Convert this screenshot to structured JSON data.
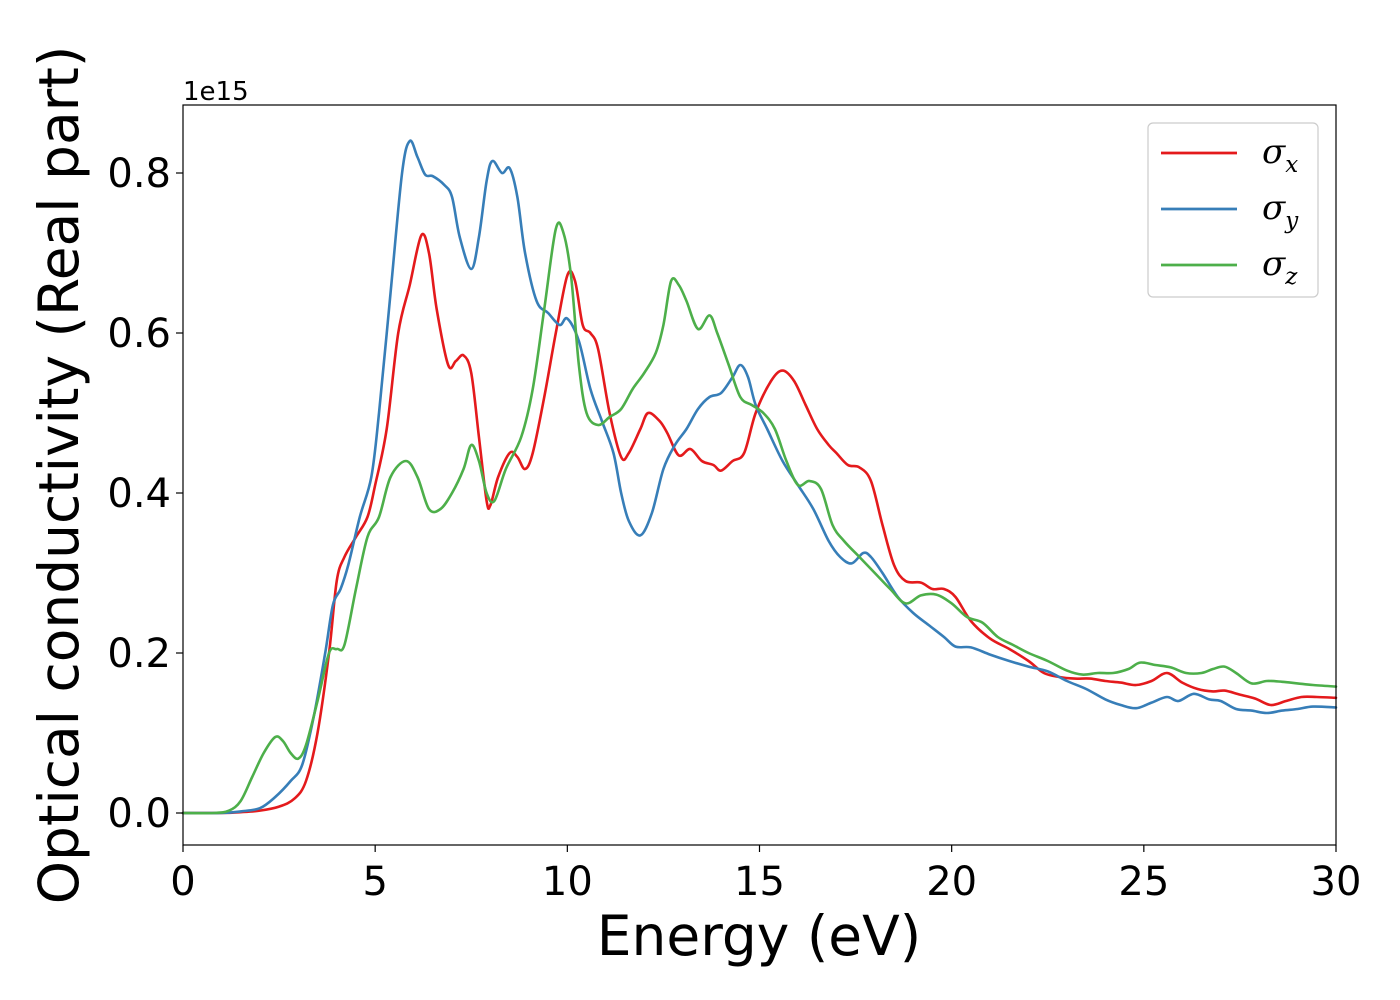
{
  "chart_data": {
    "type": "line",
    "xlabel": "Energy (eV)",
    "ylabel": "Optical conductivity (Real part)",
    "y_offset_label": "1e15",
    "xlim": [
      0,
      30
    ],
    "ylim": [
      -0.04,
      0.885
    ],
    "xticks": [
      0,
      5,
      10,
      15,
      20,
      25,
      30
    ],
    "yticks": [
      0.0,
      0.2,
      0.4,
      0.6,
      0.8
    ],
    "xtick_labels": [
      "0",
      "5",
      "10",
      "15",
      "20",
      "25",
      "30"
    ],
    "ytick_labels": [
      "0.0",
      "0.2",
      "0.4",
      "0.6",
      "0.8"
    ],
    "grid": false,
    "legend_position": "top-right",
    "series": [
      {
        "name": "σx",
        "label_main": "σ",
        "label_sub": "x",
        "color": "#e41a1c",
        "points": [
          [
            0,
            0.0
          ],
          [
            1.0,
            0.0
          ],
          [
            1.5,
            0.001
          ],
          [
            2.0,
            0.003
          ],
          [
            2.5,
            0.008
          ],
          [
            2.9,
            0.018
          ],
          [
            3.2,
            0.04
          ],
          [
            3.5,
            0.1
          ],
          [
            3.8,
            0.2
          ],
          [
            4.0,
            0.29
          ],
          [
            4.2,
            0.32
          ],
          [
            4.5,
            0.345
          ],
          [
            4.8,
            0.37
          ],
          [
            5.0,
            0.41
          ],
          [
            5.3,
            0.48
          ],
          [
            5.6,
            0.6
          ],
          [
            5.9,
            0.66
          ],
          [
            6.2,
            0.722
          ],
          [
            6.4,
            0.7
          ],
          [
            6.6,
            0.63
          ],
          [
            6.9,
            0.56
          ],
          [
            7.1,
            0.565
          ],
          [
            7.3,
            0.572
          ],
          [
            7.5,
            0.55
          ],
          [
            7.7,
            0.47
          ],
          [
            7.9,
            0.39
          ],
          [
            8.0,
            0.385
          ],
          [
            8.2,
            0.42
          ],
          [
            8.5,
            0.45
          ],
          [
            8.7,
            0.445
          ],
          [
            8.9,
            0.43
          ],
          [
            9.1,
            0.45
          ],
          [
            9.4,
            0.52
          ],
          [
            9.7,
            0.6
          ],
          [
            10.0,
            0.672
          ],
          [
            10.2,
            0.665
          ],
          [
            10.4,
            0.61
          ],
          [
            10.6,
            0.6
          ],
          [
            10.8,
            0.58
          ],
          [
            11.1,
            0.5
          ],
          [
            11.4,
            0.445
          ],
          [
            11.6,
            0.45
          ],
          [
            11.9,
            0.48
          ],
          [
            12.1,
            0.5
          ],
          [
            12.4,
            0.49
          ],
          [
            12.6,
            0.475
          ],
          [
            12.9,
            0.447
          ],
          [
            13.2,
            0.455
          ],
          [
            13.5,
            0.44
          ],
          [
            13.8,
            0.435
          ],
          [
            14.0,
            0.428
          ],
          [
            14.3,
            0.44
          ],
          [
            14.6,
            0.45
          ],
          [
            14.9,
            0.5
          ],
          [
            15.3,
            0.54
          ],
          [
            15.6,
            0.553
          ],
          [
            15.9,
            0.54
          ],
          [
            16.2,
            0.51
          ],
          [
            16.5,
            0.48
          ],
          [
            16.8,
            0.46
          ],
          [
            17.0,
            0.45
          ],
          [
            17.3,
            0.435
          ],
          [
            17.6,
            0.432
          ],
          [
            17.9,
            0.415
          ],
          [
            18.2,
            0.36
          ],
          [
            18.5,
            0.31
          ],
          [
            18.8,
            0.29
          ],
          [
            19.2,
            0.288
          ],
          [
            19.5,
            0.28
          ],
          [
            19.8,
            0.28
          ],
          [
            20.1,
            0.27
          ],
          [
            20.5,
            0.24
          ],
          [
            21.0,
            0.218
          ],
          [
            21.5,
            0.205
          ],
          [
            22.0,
            0.19
          ],
          [
            22.4,
            0.175
          ],
          [
            22.8,
            0.17
          ],
          [
            23.2,
            0.168
          ],
          [
            23.6,
            0.168
          ],
          [
            24.0,
            0.165
          ],
          [
            24.4,
            0.163
          ],
          [
            24.8,
            0.16
          ],
          [
            25.2,
            0.165
          ],
          [
            25.6,
            0.175
          ],
          [
            26.0,
            0.163
          ],
          [
            26.4,
            0.155
          ],
          [
            26.8,
            0.152
          ],
          [
            27.1,
            0.153
          ],
          [
            27.5,
            0.148
          ],
          [
            27.9,
            0.143
          ],
          [
            28.3,
            0.135
          ],
          [
            28.7,
            0.14
          ],
          [
            29.1,
            0.145
          ],
          [
            29.5,
            0.145
          ],
          [
            30,
            0.144
          ]
        ]
      },
      {
        "name": "σy",
        "label_main": "σ",
        "label_sub": "y",
        "color": "#377eb8",
        "points": [
          [
            0,
            0.0
          ],
          [
            1.0,
            0.0
          ],
          [
            1.5,
            0.002
          ],
          [
            2.0,
            0.006
          ],
          [
            2.4,
            0.02
          ],
          [
            2.8,
            0.04
          ],
          [
            3.1,
            0.06
          ],
          [
            3.4,
            0.12
          ],
          [
            3.7,
            0.2
          ],
          [
            3.9,
            0.26
          ],
          [
            4.1,
            0.28
          ],
          [
            4.3,
            0.31
          ],
          [
            4.6,
            0.37
          ],
          [
            4.9,
            0.42
          ],
          [
            5.1,
            0.5
          ],
          [
            5.4,
            0.65
          ],
          [
            5.7,
            0.8
          ],
          [
            5.9,
            0.84
          ],
          [
            6.1,
            0.82
          ],
          [
            6.3,
            0.798
          ],
          [
            6.5,
            0.796
          ],
          [
            6.8,
            0.785
          ],
          [
            7.0,
            0.77
          ],
          [
            7.2,
            0.72
          ],
          [
            7.5,
            0.68
          ],
          [
            7.7,
            0.72
          ],
          [
            7.9,
            0.79
          ],
          [
            8.05,
            0.815
          ],
          [
            8.3,
            0.8
          ],
          [
            8.5,
            0.806
          ],
          [
            8.7,
            0.77
          ],
          [
            8.9,
            0.7
          ],
          [
            9.2,
            0.64
          ],
          [
            9.5,
            0.625
          ],
          [
            9.8,
            0.61
          ],
          [
            10.0,
            0.618
          ],
          [
            10.3,
            0.59
          ],
          [
            10.6,
            0.53
          ],
          [
            10.9,
            0.49
          ],
          [
            11.2,
            0.45
          ],
          [
            11.4,
            0.4
          ],
          [
            11.6,
            0.365
          ],
          [
            11.9,
            0.347
          ],
          [
            12.2,
            0.375
          ],
          [
            12.5,
            0.43
          ],
          [
            12.8,
            0.46
          ],
          [
            13.1,
            0.48
          ],
          [
            13.4,
            0.505
          ],
          [
            13.7,
            0.52
          ],
          [
            14.0,
            0.525
          ],
          [
            14.3,
            0.545
          ],
          [
            14.5,
            0.56
          ],
          [
            14.7,
            0.545
          ],
          [
            14.9,
            0.51
          ],
          [
            15.2,
            0.48
          ],
          [
            15.6,
            0.44
          ],
          [
            16.0,
            0.41
          ],
          [
            16.4,
            0.38
          ],
          [
            16.8,
            0.34
          ],
          [
            17.1,
            0.32
          ],
          [
            17.4,
            0.312
          ],
          [
            17.7,
            0.325
          ],
          [
            17.9,
            0.32
          ],
          [
            18.2,
            0.3
          ],
          [
            18.6,
            0.27
          ],
          [
            19.0,
            0.25
          ],
          [
            19.4,
            0.235
          ],
          [
            19.8,
            0.22
          ],
          [
            20.1,
            0.208
          ],
          [
            20.5,
            0.207
          ],
          [
            21.0,
            0.198
          ],
          [
            21.5,
            0.19
          ],
          [
            22.0,
            0.183
          ],
          [
            22.5,
            0.177
          ],
          [
            23.0,
            0.165
          ],
          [
            23.5,
            0.155
          ],
          [
            24.0,
            0.142
          ],
          [
            24.4,
            0.135
          ],
          [
            24.8,
            0.131
          ],
          [
            25.2,
            0.138
          ],
          [
            25.6,
            0.145
          ],
          [
            25.9,
            0.14
          ],
          [
            26.3,
            0.149
          ],
          [
            26.7,
            0.142
          ],
          [
            27.0,
            0.14
          ],
          [
            27.4,
            0.13
          ],
          [
            27.8,
            0.128
          ],
          [
            28.2,
            0.125
          ],
          [
            28.6,
            0.128
          ],
          [
            29.0,
            0.13
          ],
          [
            29.4,
            0.133
          ],
          [
            30,
            0.132
          ]
        ]
      },
      {
        "name": "σz",
        "label_main": "σ",
        "label_sub": "z",
        "color": "#4daf4a",
        "points": [
          [
            0,
            0.0
          ],
          [
            0.8,
            0.0
          ],
          [
            1.2,
            0.003
          ],
          [
            1.5,
            0.015
          ],
          [
            1.8,
            0.045
          ],
          [
            2.1,
            0.075
          ],
          [
            2.4,
            0.095
          ],
          [
            2.6,
            0.09
          ],
          [
            2.8,
            0.075
          ],
          [
            3.0,
            0.068
          ],
          [
            3.2,
            0.085
          ],
          [
            3.5,
            0.14
          ],
          [
            3.8,
            0.2
          ],
          [
            4.0,
            0.205
          ],
          [
            4.2,
            0.21
          ],
          [
            4.5,
            0.28
          ],
          [
            4.8,
            0.345
          ],
          [
            5.1,
            0.37
          ],
          [
            5.4,
            0.42
          ],
          [
            5.8,
            0.44
          ],
          [
            6.1,
            0.42
          ],
          [
            6.4,
            0.38
          ],
          [
            6.7,
            0.38
          ],
          [
            7.0,
            0.4
          ],
          [
            7.3,
            0.43
          ],
          [
            7.5,
            0.46
          ],
          [
            7.7,
            0.44
          ],
          [
            7.9,
            0.4
          ],
          [
            8.1,
            0.39
          ],
          [
            8.4,
            0.43
          ],
          [
            8.8,
            0.47
          ],
          [
            9.1,
            0.53
          ],
          [
            9.4,
            0.63
          ],
          [
            9.7,
            0.73
          ],
          [
            9.9,
            0.725
          ],
          [
            10.1,
            0.67
          ],
          [
            10.3,
            0.56
          ],
          [
            10.5,
            0.5
          ],
          [
            10.8,
            0.485
          ],
          [
            11.1,
            0.495
          ],
          [
            11.4,
            0.505
          ],
          [
            11.7,
            0.53
          ],
          [
            12.0,
            0.55
          ],
          [
            12.3,
            0.575
          ],
          [
            12.5,
            0.61
          ],
          [
            12.7,
            0.665
          ],
          [
            12.9,
            0.66
          ],
          [
            13.1,
            0.64
          ],
          [
            13.4,
            0.605
          ],
          [
            13.7,
            0.622
          ],
          [
            13.9,
            0.6
          ],
          [
            14.2,
            0.56
          ],
          [
            14.5,
            0.52
          ],
          [
            14.8,
            0.51
          ],
          [
            15.1,
            0.5
          ],
          [
            15.4,
            0.48
          ],
          [
            15.7,
            0.44
          ],
          [
            16.0,
            0.41
          ],
          [
            16.3,
            0.415
          ],
          [
            16.6,
            0.405
          ],
          [
            16.9,
            0.36
          ],
          [
            17.2,
            0.34
          ],
          [
            17.6,
            0.32
          ],
          [
            18.0,
            0.3
          ],
          [
            18.4,
            0.28
          ],
          [
            18.8,
            0.262
          ],
          [
            19.2,
            0.272
          ],
          [
            19.6,
            0.273
          ],
          [
            20.0,
            0.262
          ],
          [
            20.4,
            0.245
          ],
          [
            20.8,
            0.238
          ],
          [
            21.2,
            0.22
          ],
          [
            21.6,
            0.21
          ],
          [
            22.0,
            0.2
          ],
          [
            22.5,
            0.19
          ],
          [
            23.0,
            0.178
          ],
          [
            23.4,
            0.173
          ],
          [
            23.8,
            0.175
          ],
          [
            24.2,
            0.175
          ],
          [
            24.6,
            0.18
          ],
          [
            24.9,
            0.188
          ],
          [
            25.3,
            0.185
          ],
          [
            25.7,
            0.182
          ],
          [
            26.1,
            0.175
          ],
          [
            26.5,
            0.175
          ],
          [
            26.8,
            0.18
          ],
          [
            27.1,
            0.183
          ],
          [
            27.4,
            0.175
          ],
          [
            27.8,
            0.162
          ],
          [
            28.2,
            0.165
          ],
          [
            28.6,
            0.164
          ],
          [
            29.0,
            0.162
          ],
          [
            29.4,
            0.16
          ],
          [
            30,
            0.158
          ]
        ]
      }
    ]
  }
}
